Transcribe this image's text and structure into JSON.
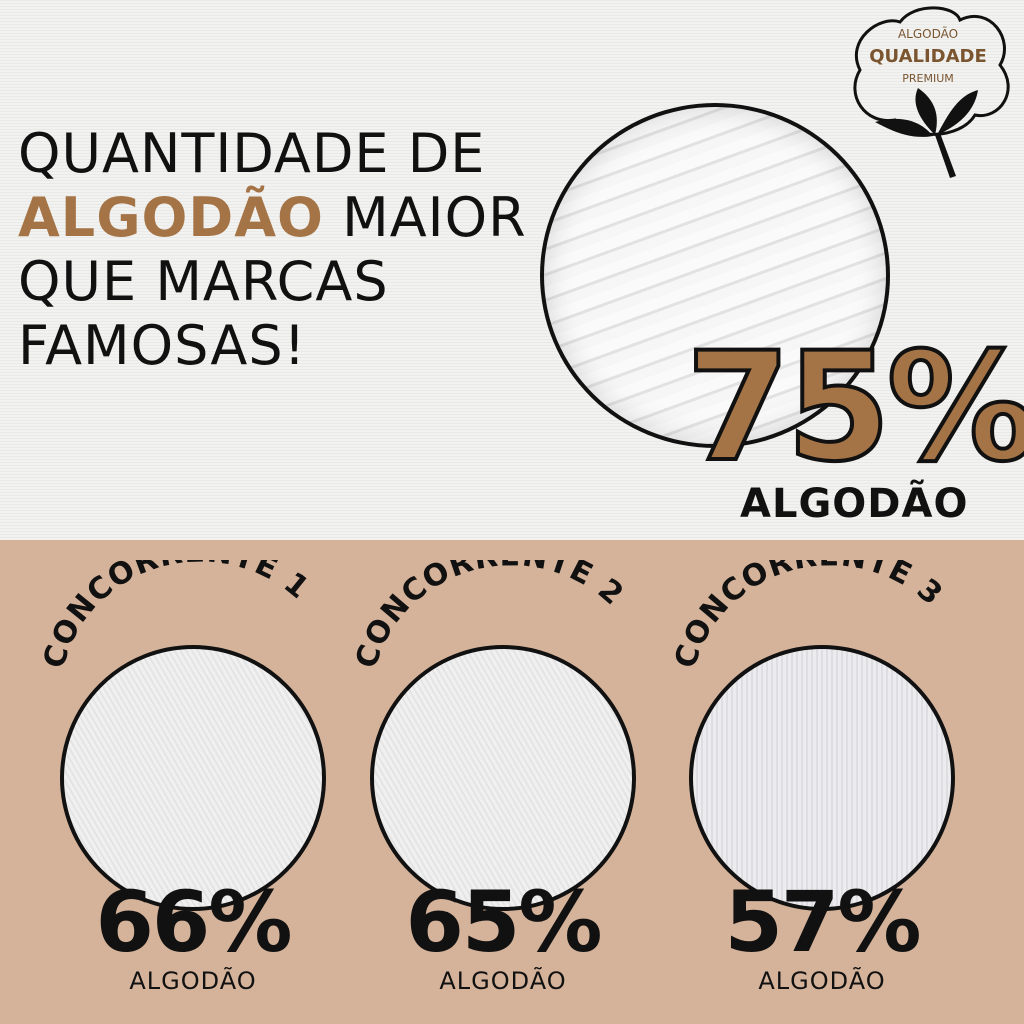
{
  "headline": {
    "line1": "QUANTIDADE DE",
    "highlight": "ALGODÃO",
    "line2_rest": " MAIOR",
    "line3": "QUE MARCAS",
    "line4": "FAMOSAS!"
  },
  "badge": {
    "top": "ALGODÃO",
    "middle": "QUALIDADE",
    "bottom": "PREMIUM",
    "icon": "cotton-plant-icon"
  },
  "main_product": {
    "percent": "75%",
    "label": "ALGODÃO"
  },
  "competitors": [
    {
      "name": "CONCORRENTE 1",
      "percent": "66%",
      "label": "ALGODÃO"
    },
    {
      "name": "CONCORRENTE 2",
      "percent": "65%",
      "label": "ALGODÃO"
    },
    {
      "name": "CONCORRENTE 3",
      "percent": "57%",
      "label": "ALGODÃO"
    }
  ],
  "colors": {
    "accent_brown": "#a57446",
    "bottom_bg": "#d5b39a",
    "text": "#111111"
  }
}
